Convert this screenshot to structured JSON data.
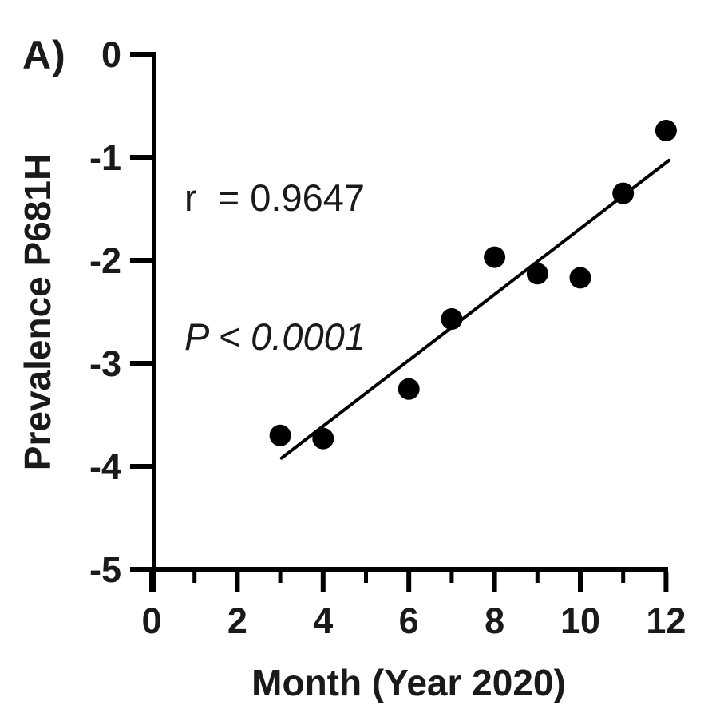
{
  "panel_label": "A)",
  "annotation": {
    "r_line": "r  = 0.9647",
    "p_line": "P < 0.0001"
  },
  "chart_data": {
    "type": "scatter",
    "title": "",
    "xlabel": "Month (Year 2020)",
    "ylabel": "Prevalence P681H",
    "xlim": [
      0,
      12
    ],
    "ylim": [
      -5,
      0
    ],
    "grid": false,
    "legend_position": "none",
    "x_ticks_major": [
      0,
      2,
      4,
      6,
      8,
      10,
      12
    ],
    "x_ticks_minor": [
      1,
      3,
      5,
      7,
      9,
      11
    ],
    "y_ticks": [
      0,
      -1,
      -2,
      -3,
      -4,
      -5
    ],
    "points": [
      {
        "x": 3,
        "y": -3.7
      },
      {
        "x": 4,
        "y": -3.73
      },
      {
        "x": 6,
        "y": -3.25
      },
      {
        "x": 7,
        "y": -2.57
      },
      {
        "x": 8,
        "y": -1.97
      },
      {
        "x": 9,
        "y": -2.13
      },
      {
        "x": 10,
        "y": -2.17
      },
      {
        "x": 11,
        "y": -1.35
      },
      {
        "x": 12,
        "y": -0.74
      }
    ],
    "regression_line": {
      "x1": 3.03,
      "y1": -3.92,
      "x2": 12.07,
      "y2": -1.03
    },
    "stats": {
      "r": "0.9647",
      "p": "< 0.0001"
    },
    "colors": {
      "points": "#000000",
      "line": "#000000",
      "axis": "#000000",
      "text": "#1a1a1a",
      "background": "#ffffff"
    }
  }
}
